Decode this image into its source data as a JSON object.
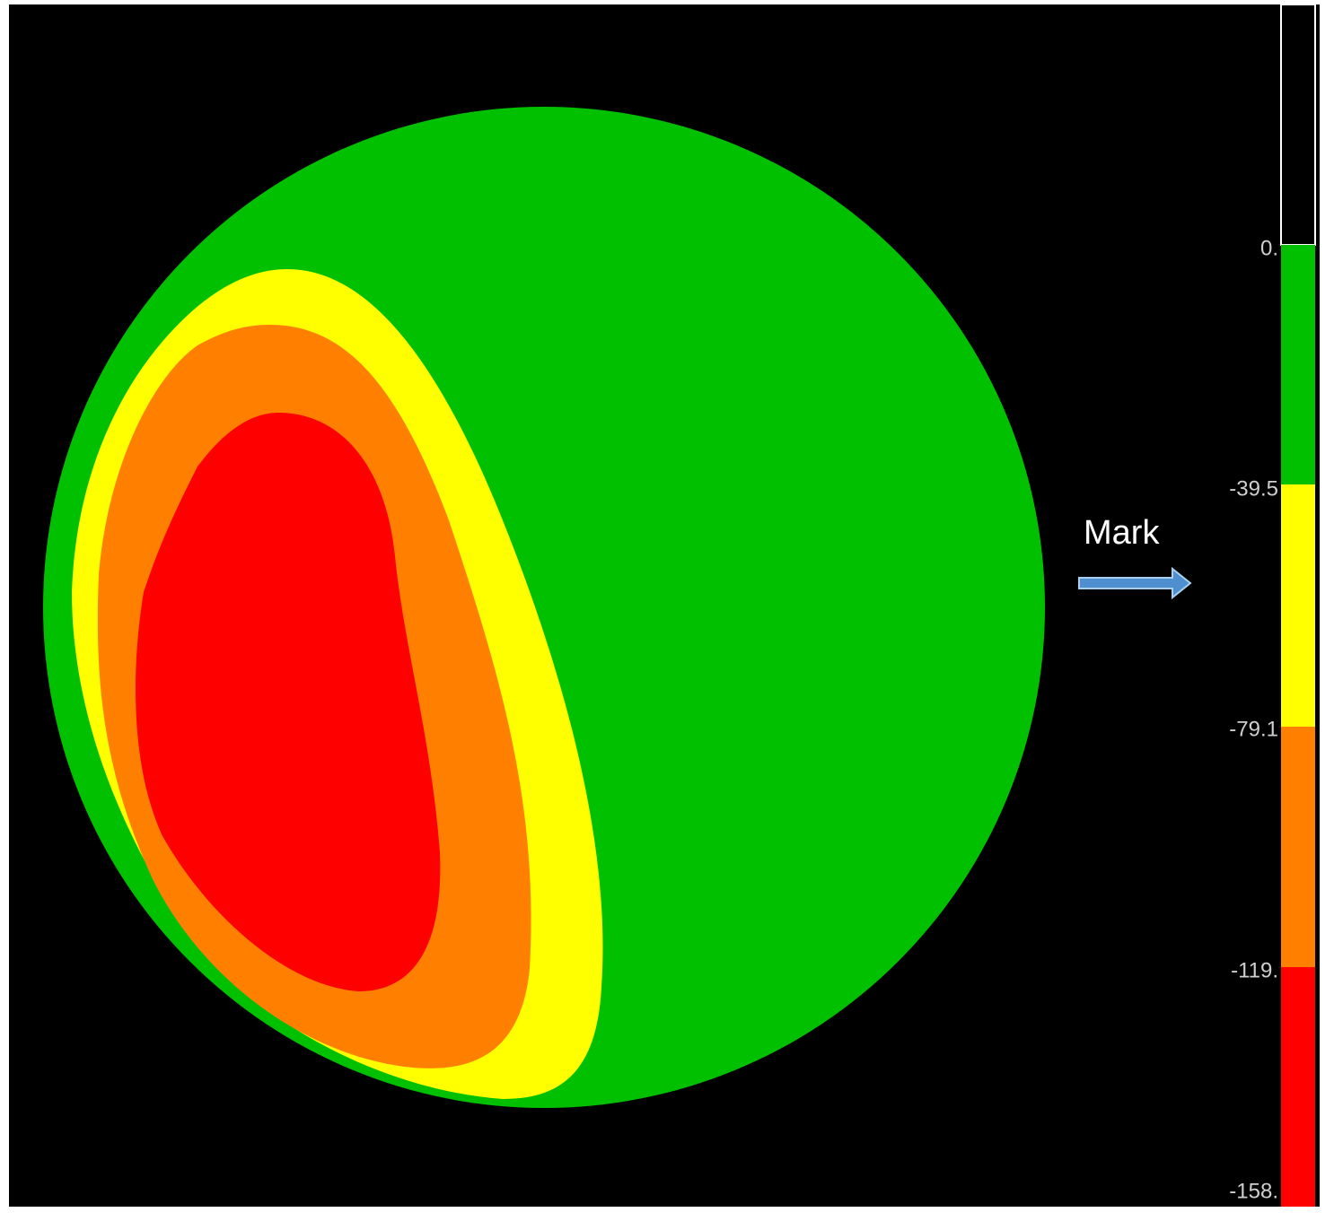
{
  "annotation": "Mark",
  "legend": {
    "labels": [
      "0.",
      "-39.5",
      "-79.1",
      "-119.",
      "-158."
    ]
  }
}
